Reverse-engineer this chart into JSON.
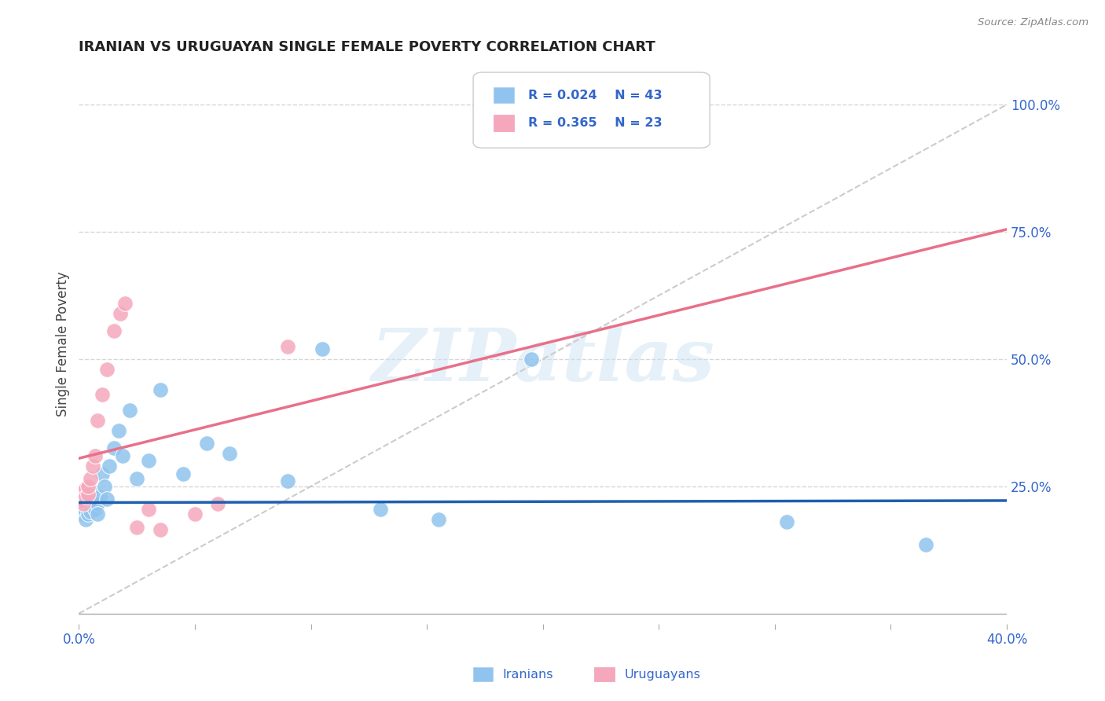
{
  "title": "IRANIAN VS URUGUAYAN SINGLE FEMALE POVERTY CORRELATION CHART",
  "source": "Source: ZipAtlas.com",
  "ylabel": "Single Female Poverty",
  "xlim": [
    0.0,
    0.4
  ],
  "ylim": [
    -0.02,
    1.08
  ],
  "xticks": [
    0.0,
    0.05,
    0.1,
    0.15,
    0.2,
    0.25,
    0.3,
    0.35,
    0.4
  ],
  "xtick_labels": [
    "0.0%",
    "",
    "",
    "",
    "",
    "",
    "",
    "",
    "40.0%"
  ],
  "ytick_positions": [
    0.25,
    0.5,
    0.75,
    1.0
  ],
  "ytick_labels": [
    "25.0%",
    "50.0%",
    "75.0%",
    "100.0%"
  ],
  "grid_color": "#cccccc",
  "background_color": "#ffffff",
  "iranian_color": "#90C4EE",
  "uruguayan_color": "#F5A8BC",
  "iranian_line_color": "#1F5FAD",
  "uruguayan_line_color": "#E8708A",
  "reference_line_color": "#cccccc",
  "legend_R_iranian": "R = 0.024",
  "legend_N_iranian": "N = 43",
  "legend_R_uruguayan": "R = 0.365",
  "legend_N_uruguayan": "N = 23",
  "text_color": "#3366CC",
  "title_color": "#222222",
  "watermark": "ZIPatlas",
  "iran_line_y0": 0.218,
  "iran_line_y1": 0.222,
  "urug_line_y0": 0.305,
  "urug_line_y1": 0.755,
  "ref_line_x0": 0.0,
  "ref_line_y0": 0.0,
  "ref_line_x1": 0.4,
  "ref_line_y1": 1.0,
  "iranians_x": [
    0.001,
    0.001,
    0.001,
    0.002,
    0.002,
    0.002,
    0.003,
    0.003,
    0.003,
    0.004,
    0.004,
    0.004,
    0.005,
    0.005,
    0.005,
    0.006,
    0.006,
    0.007,
    0.007,
    0.008,
    0.008,
    0.009,
    0.01,
    0.011,
    0.012,
    0.013,
    0.015,
    0.017,
    0.019,
    0.022,
    0.025,
    0.03,
    0.035,
    0.045,
    0.055,
    0.065,
    0.09,
    0.105,
    0.13,
    0.155,
    0.195,
    0.305,
    0.365
  ],
  "iranians_y": [
    0.215,
    0.225,
    0.205,
    0.195,
    0.21,
    0.22,
    0.2,
    0.215,
    0.185,
    0.21,
    0.225,
    0.195,
    0.23,
    0.215,
    0.2,
    0.225,
    0.24,
    0.22,
    0.205,
    0.215,
    0.195,
    0.23,
    0.275,
    0.25,
    0.225,
    0.29,
    0.325,
    0.36,
    0.31,
    0.4,
    0.265,
    0.3,
    0.44,
    0.275,
    0.335,
    0.315,
    0.26,
    0.52,
    0.205,
    0.185,
    0.5,
    0.18,
    0.135
  ],
  "uruguayans_x": [
    0.001,
    0.001,
    0.002,
    0.002,
    0.003,
    0.003,
    0.004,
    0.004,
    0.005,
    0.006,
    0.007,
    0.008,
    0.01,
    0.012,
    0.015,
    0.018,
    0.02,
    0.025,
    0.03,
    0.035,
    0.05,
    0.06,
    0.09
  ],
  "uruguayans_y": [
    0.225,
    0.22,
    0.215,
    0.24,
    0.245,
    0.23,
    0.235,
    0.25,
    0.265,
    0.29,
    0.31,
    0.38,
    0.43,
    0.48,
    0.555,
    0.59,
    0.61,
    0.17,
    0.205,
    0.165,
    0.195,
    0.215,
    0.525
  ]
}
